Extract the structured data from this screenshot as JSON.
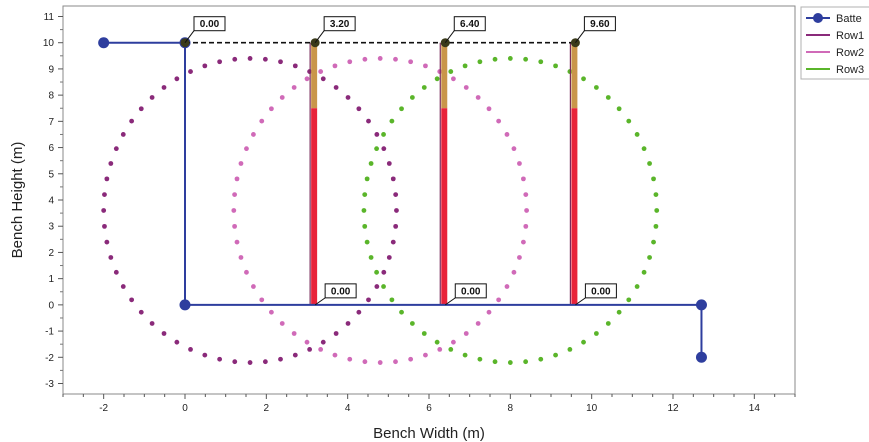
{
  "chart_data": {
    "type": "scatter",
    "xlabel": "Bench Width (m)",
    "ylabel": "Bench Height (m)",
    "xlim": [
      -3,
      15
    ],
    "ylim": [
      -3.4,
      11.4
    ],
    "x_ticks": [
      -2,
      0,
      2,
      4,
      6,
      8,
      10,
      12,
      14
    ],
    "y_ticks": [
      -3,
      -2,
      -1,
      0,
      1,
      2,
      3,
      4,
      5,
      6,
      7,
      8,
      9,
      10,
      11
    ],
    "grid": false,
    "legend_position": "top-right",
    "legend": [
      {
        "label": "Batte",
        "color": "#2e3e9e",
        "marker": "circle-line"
      },
      {
        "label": "Row1",
        "color": "#8a2a7a",
        "marker": "line"
      },
      {
        "label": "Row2",
        "color": "#d06ab8",
        "marker": "line"
      },
      {
        "label": "Row3",
        "color": "#5ab52a",
        "marker": "line"
      }
    ],
    "batter": {
      "color": "#2e3e9e",
      "points": [
        [
          -2,
          10
        ],
        [
          0,
          10
        ],
        [
          0,
          0
        ],
        [
          12.7,
          0
        ],
        [
          12.7,
          -2
        ]
      ],
      "markers": [
        [
          -2,
          10
        ],
        [
          0,
          10
        ],
        [
          0,
          0
        ],
        [
          12.7,
          0
        ],
        [
          12.7,
          -2
        ]
      ]
    },
    "collar_line": {
      "points": [
        [
          0,
          10
        ],
        [
          9.6,
          10
        ]
      ],
      "markers": [
        [
          0,
          10
        ],
        [
          3.2,
          10
        ],
        [
          6.4,
          10
        ],
        [
          9.6,
          10
        ]
      ]
    },
    "holes": [
      {
        "x": 3.2,
        "charge_bottom": 0,
        "charge_top": 7.5,
        "stem_top": 10
      },
      {
        "x": 6.4,
        "charge_bottom": 0,
        "charge_top": 7.5,
        "stem_top": 10
      },
      {
        "x": 9.6,
        "charge_bottom": 0,
        "charge_top": 7.5,
        "stem_top": 10
      }
    ],
    "top_callouts": [
      {
        "x": 0,
        "y": 10,
        "text": "0.00"
      },
      {
        "x": 3.2,
        "y": 10,
        "text": "3.20"
      },
      {
        "x": 6.4,
        "y": 10,
        "text": "6.40"
      },
      {
        "x": 9.6,
        "y": 10,
        "text": "9.60"
      }
    ],
    "bottom_callouts": [
      {
        "x": 3.2,
        "y": 0,
        "text": "0.00"
      },
      {
        "x": 6.4,
        "y": 0,
        "text": "0.00"
      },
      {
        "x": 9.6,
        "y": 0,
        "text": "0.00"
      }
    ],
    "series": [
      {
        "name": "Row1",
        "color": "#8a2a7a",
        "center": [
          1.6,
          3.6
        ],
        "rx": 3.6,
        "ry": 5.8,
        "points": 60
      },
      {
        "name": "Row2",
        "color": "#d06ab8",
        "center": [
          4.8,
          3.6
        ],
        "rx": 3.6,
        "ry": 5.8,
        "points": 60
      },
      {
        "name": "Row3",
        "color": "#5ab52a",
        "center": [
          8.0,
          3.6
        ],
        "rx": 3.6,
        "ry": 5.8,
        "points": 60
      }
    ]
  }
}
